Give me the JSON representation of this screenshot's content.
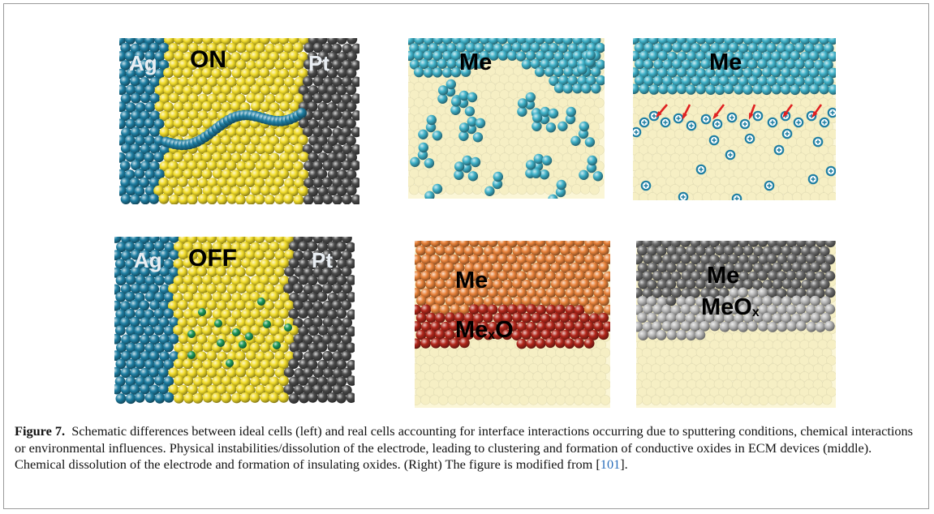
{
  "panels": {
    "ideal_on": {
      "left_label": "Ag",
      "center_label": "ON",
      "right_label": "Pt"
    },
    "ideal_off": {
      "left_label": "Ag",
      "center_label": "OFF",
      "right_label": "Pt"
    },
    "middle_top": {
      "label": "Me"
    },
    "middle_bottom": {
      "top_label": "Me",
      "bottom_label": "Me",
      "bottom_label_sub": "x",
      "bottom_label_tail": "O"
    },
    "right_top": {
      "label": "Me"
    },
    "right_bottom": {
      "top_label": "Me",
      "bottom_label": "MeO",
      "bottom_label_sub": "x"
    }
  },
  "caption": {
    "label": "Figure 7.",
    "text": "Schematic differences between ideal cells (left) and real cells accounting for interface interactions occurring due to sputtering conditions, chemical interactions or environmental influences. Physical instabilities/dissolution of the electrode, leading to clustering and formation of conductive oxides in ECM devices (middle). Chemical dissolution of the electrode and formation of insulating oxides. (Right) The figure is modified from [",
    "ref": "101",
    "tail": "]."
  },
  "colors": {
    "silver_blue": "#1f7fa3",
    "electrolyte_yellow": "#f1dc2a",
    "platinum_grey": "#4a4a4a",
    "cluster_cyan": "#3fb1c8",
    "matrix_cream": "#fbf6d6",
    "oxide_orange": "#e8823a",
    "oxide_red": "#b2271b",
    "ion_green": "#1f9a5a",
    "arrow_red": "#e02020"
  }
}
